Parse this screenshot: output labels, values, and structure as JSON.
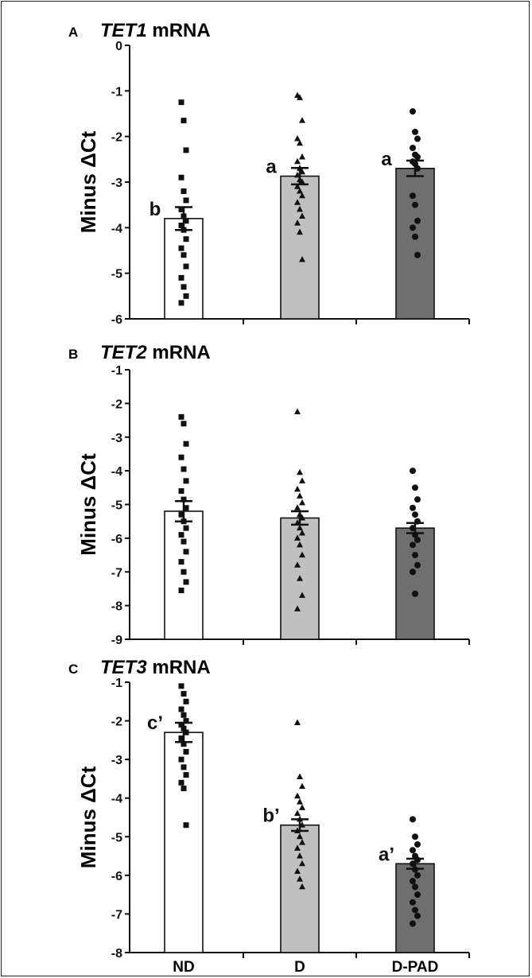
{
  "chart_data": [
    {
      "type": "bar",
      "panel_label": "A",
      "title_gene": "TET1",
      "title_rest": " mRNA",
      "ylabel": "Minus ΔCt",
      "ylim": [
        -6,
        0
      ],
      "yticks": [
        "0",
        "-1",
        "-2",
        "-3",
        "-4",
        "-5",
        "-6"
      ],
      "ytick_values": [
        0,
        -1,
        -2,
        -3,
        -4,
        -5,
        -6
      ],
      "categories": [
        "ND",
        "D",
        "D-PAD"
      ],
      "values": [
        -3.8,
        -2.87,
        -2.7
      ],
      "errors": [
        0.25,
        0.18,
        0.17
      ],
      "significance": [
        "b",
        "a",
        "a"
      ],
      "bar_colors": [
        "#ffffff",
        "#c0c0c0",
        "#6f6f6f"
      ],
      "markers": [
        "square",
        "triangle",
        "circle"
      ],
      "points": [
        [
          -1.25,
          -1.65,
          -2.3,
          -2.9,
          -3.2,
          -3.4,
          -3.6,
          -3.75,
          -3.85,
          -3.95,
          -4.05,
          -4.25,
          -4.45,
          -4.6,
          -4.85,
          -5.1,
          -5.3,
          -5.5,
          -5.65
        ],
        [
          -1.1,
          -1.15,
          -1.65,
          -2.05,
          -2.15,
          -2.45,
          -2.55,
          -2.7,
          -2.78,
          -2.85,
          -2.95,
          -3.0,
          -3.1,
          -3.2,
          -3.3,
          -3.45,
          -3.6,
          -3.75,
          -3.9,
          -4.1,
          -4.7
        ],
        [
          -1.45,
          -1.9,
          -2.05,
          -2.25,
          -2.4,
          -2.45,
          -2.55,
          -2.6,
          -2.7,
          -3.3,
          -3.5,
          -3.85,
          -4.0,
          -4.2,
          -4.6
        ]
      ]
    },
    {
      "type": "bar",
      "panel_label": "B",
      "title_gene": "TET2",
      "title_rest": " mRNA",
      "ylabel": "Minus ΔCt",
      "ylim": [
        -9,
        -1
      ],
      "yticks": [
        "-1",
        "-2",
        "-3",
        "-4",
        "-5",
        "-6",
        "-7",
        "-8",
        "-9"
      ],
      "ytick_values": [
        -1,
        -2,
        -3,
        -4,
        -5,
        -6,
        -7,
        -8,
        -9
      ],
      "categories": [
        "ND",
        "D",
        "D-PAD"
      ],
      "values": [
        -5.2,
        -5.4,
        -5.7
      ],
      "errors": [
        0.3,
        0.2,
        0.15
      ],
      "significance": [
        "",
        "",
        ""
      ],
      "bar_colors": [
        "#ffffff",
        "#c0c0c0",
        "#6f6f6f"
      ],
      "markers": [
        "square",
        "triangle",
        "circle"
      ],
      "points": [
        [
          -2.4,
          -2.6,
          -3.2,
          -3.6,
          -3.95,
          -4.3,
          -4.6,
          -4.85,
          -5.1,
          -5.3,
          -5.5,
          -5.7,
          -5.9,
          -6.1,
          -6.4,
          -6.7,
          -7.0,
          -7.3,
          -7.55
        ],
        [
          -2.25,
          -4.05,
          -4.3,
          -4.55,
          -4.75,
          -4.95,
          -5.1,
          -5.3,
          -5.4,
          -5.55,
          -5.7,
          -5.85,
          -6.0,
          -6.2,
          -6.5,
          -6.8,
          -7.2,
          -7.7,
          -8.1
        ],
        [
          -4.0,
          -4.5,
          -4.85,
          -5.1,
          -5.3,
          -5.5,
          -5.7,
          -5.9,
          -6.05,
          -6.2,
          -6.5,
          -6.8,
          -7.0,
          -7.65
        ]
      ]
    },
    {
      "type": "bar",
      "panel_label": "C",
      "title_gene": "TET3",
      "title_rest": " mRNA",
      "ylabel": "Minus ΔCt",
      "ylim": [
        -8,
        -1
      ],
      "yticks": [
        "-1",
        "-2",
        "-3",
        "-4",
        "-5",
        "-6",
        "-7",
        "-8"
      ],
      "ytick_values": [
        -1,
        -2,
        -3,
        -4,
        -5,
        -6,
        -7,
        -8
      ],
      "categories": [
        "ND",
        "D",
        "D-PAD"
      ],
      "values": [
        -2.3,
        -4.7,
        -5.7
      ],
      "errors": [
        0.25,
        0.15,
        0.13
      ],
      "significance": [
        "c’",
        "b’",
        "a’"
      ],
      "bar_colors": [
        "#ffffff",
        "#c0c0c0",
        "#6f6f6f"
      ],
      "markers": [
        "square",
        "triangle",
        "circle"
      ],
      "points": [
        [
          -1.1,
          -1.3,
          -1.5,
          -1.7,
          -1.85,
          -2.0,
          -2.1,
          -2.2,
          -2.3,
          -2.45,
          -2.6,
          -2.8,
          -3.0,
          -3.2,
          -3.4,
          -3.6,
          -3.75,
          -4.7
        ],
        [
          -2.05,
          -3.45,
          -3.7,
          -3.95,
          -4.1,
          -4.25,
          -4.4,
          -4.55,
          -4.7,
          -4.85,
          -5.0,
          -5.15,
          -5.3,
          -5.5,
          -5.7,
          -5.9,
          -6.1,
          -6.3
        ],
        [
          -4.55,
          -5.0,
          -5.2,
          -5.35,
          -5.5,
          -5.6,
          -5.7,
          -5.85,
          -6.0,
          -6.15,
          -6.3,
          -6.5,
          -6.7,
          -6.9,
          -7.05,
          -7.25
        ]
      ]
    }
  ]
}
